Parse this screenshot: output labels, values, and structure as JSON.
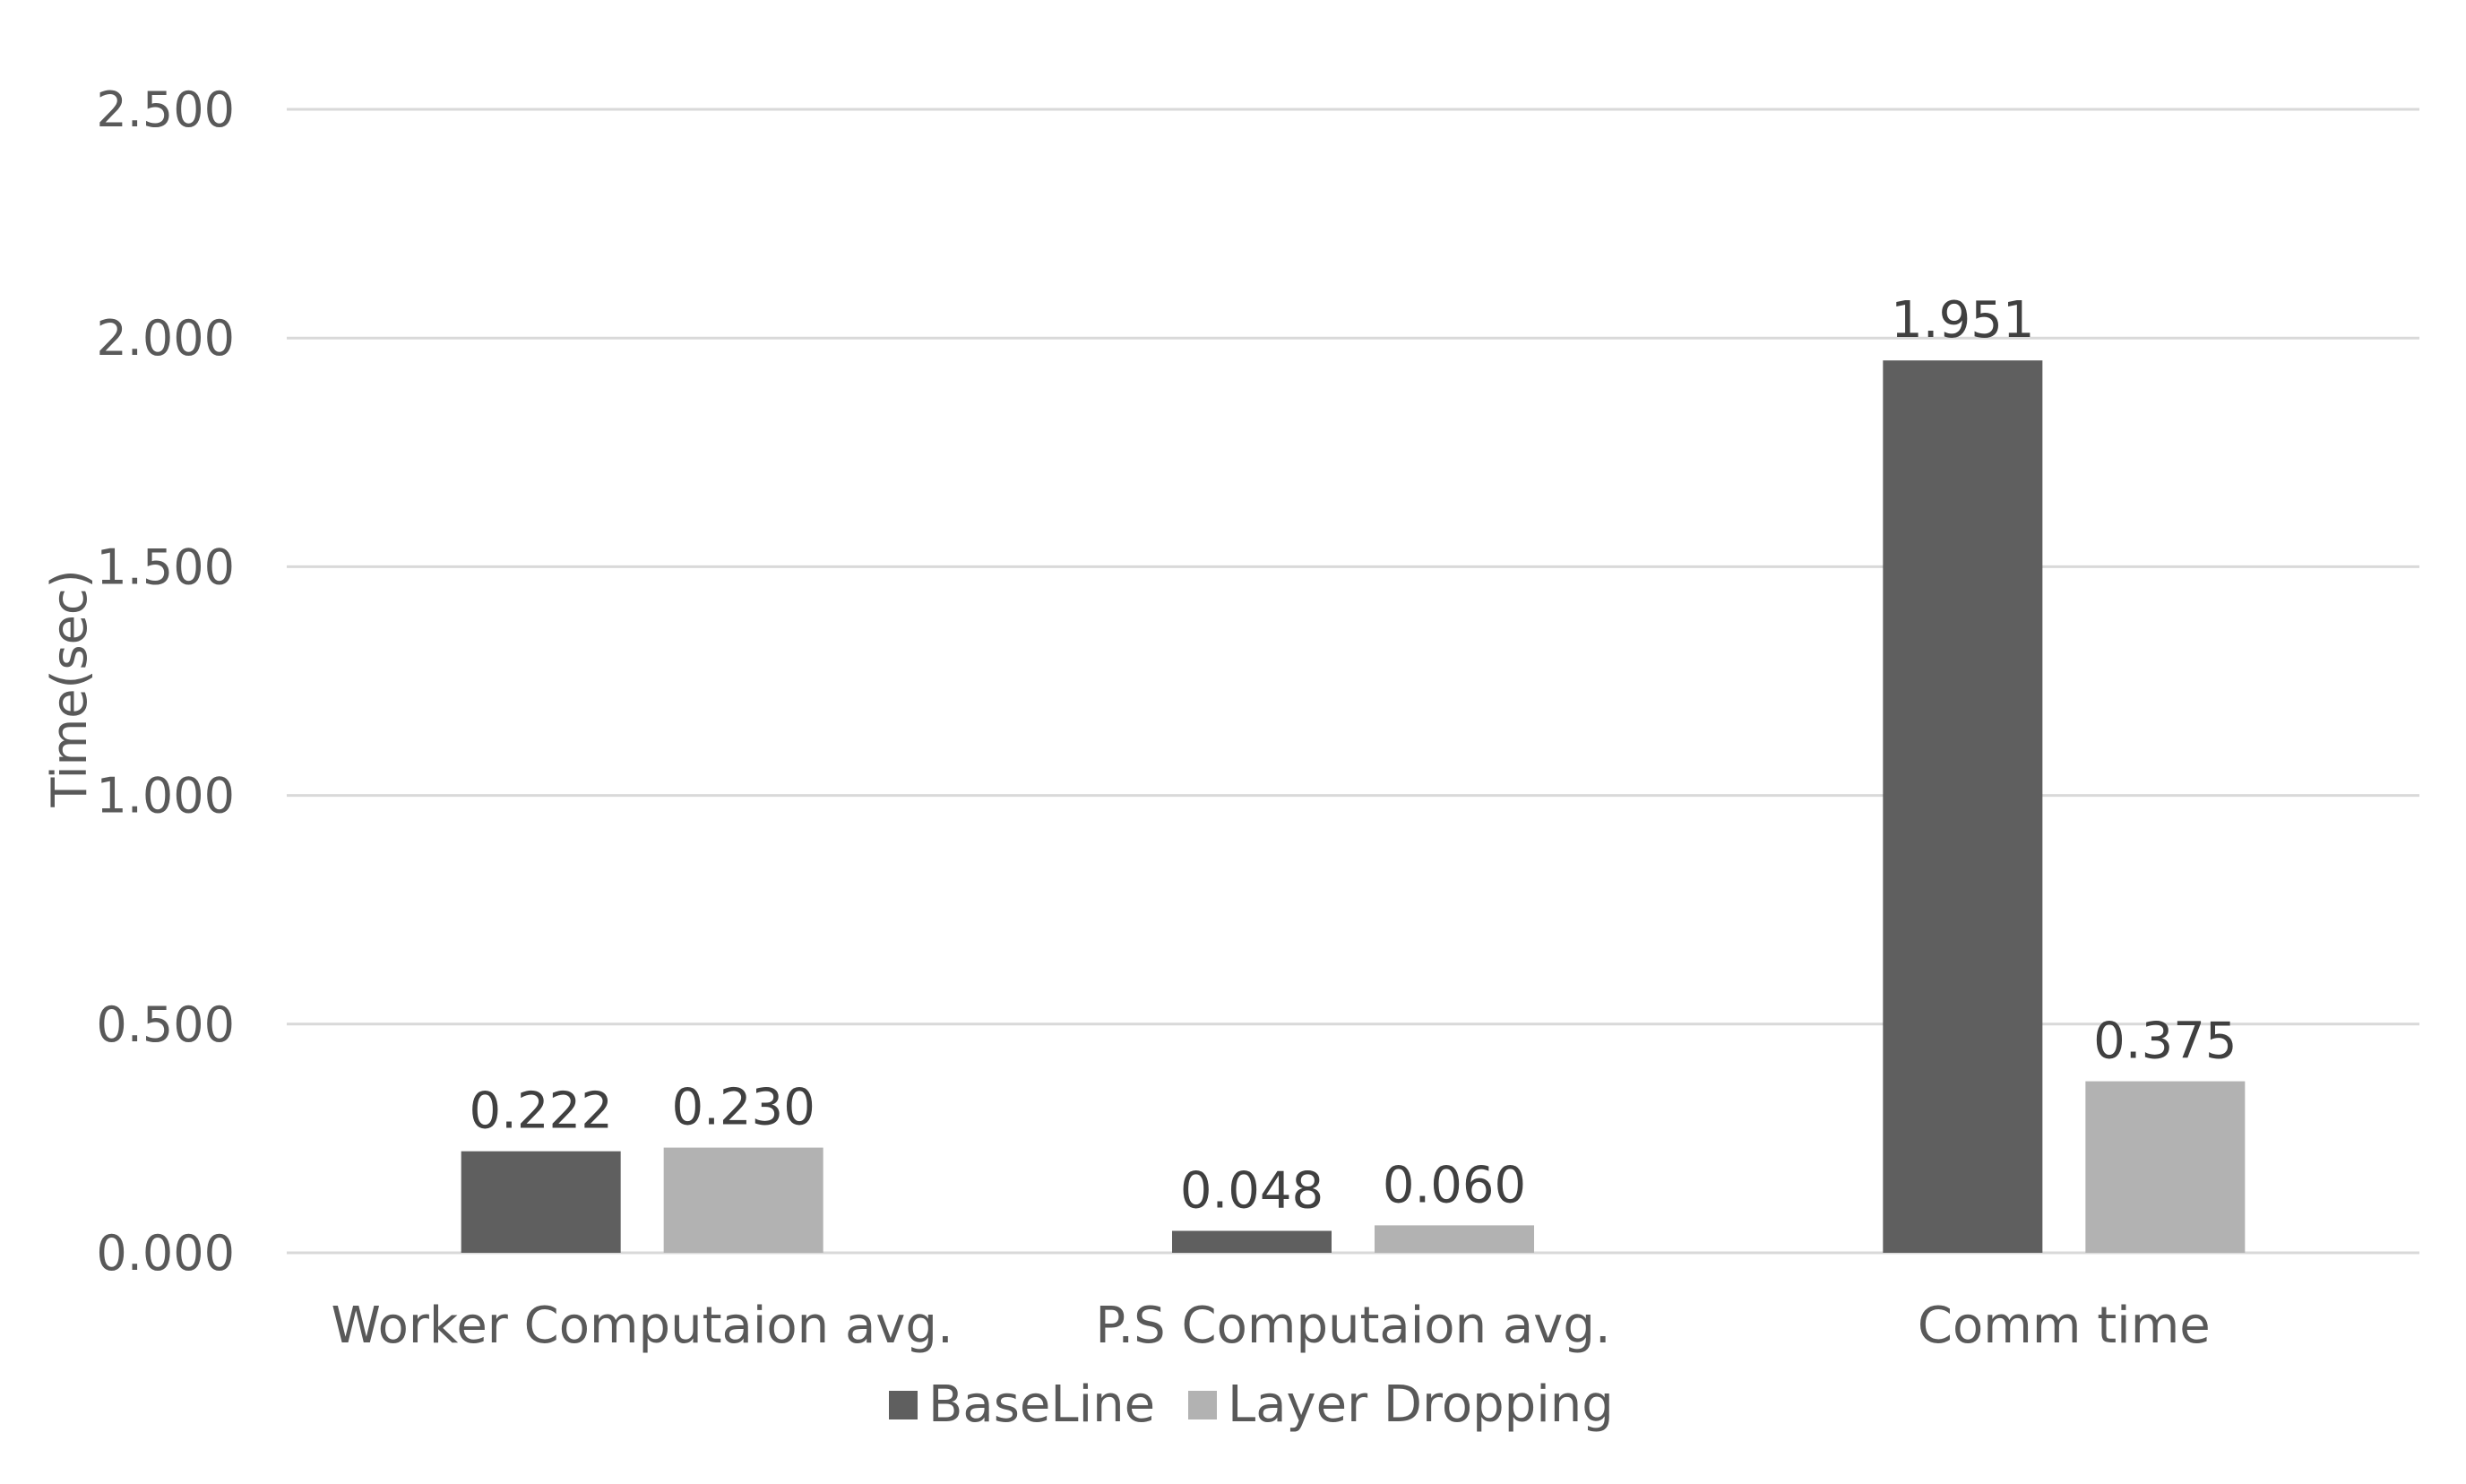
{
  "chart_data": {
    "type": "bar",
    "title": "",
    "xlabel": "",
    "ylabel": "Time(sec)",
    "ylim": [
      0,
      2.5
    ],
    "yticks": [
      "0.000",
      "0.500",
      "1.000",
      "1.500",
      "2.000",
      "2.500"
    ],
    "yticks_values": [
      0,
      0.5,
      1.0,
      1.5,
      2.0,
      2.5
    ],
    "grid": true,
    "legend_position": "bottom",
    "categories": [
      "Worker Computaion avg.",
      "P.S Computaion avg.",
      "Comm time"
    ],
    "series": [
      {
        "name": "BaseLine",
        "color": "#5f5f5f",
        "values": [
          0.222,
          0.048,
          1.951
        ],
        "labels": [
          "0.222",
          "0.048",
          "1.951"
        ]
      },
      {
        "name": "Layer Dropping",
        "color": "#b2b2b2",
        "values": [
          0.23,
          0.06,
          0.375
        ],
        "labels": [
          "0.230",
          "0.060",
          "0.375"
        ]
      }
    ]
  }
}
